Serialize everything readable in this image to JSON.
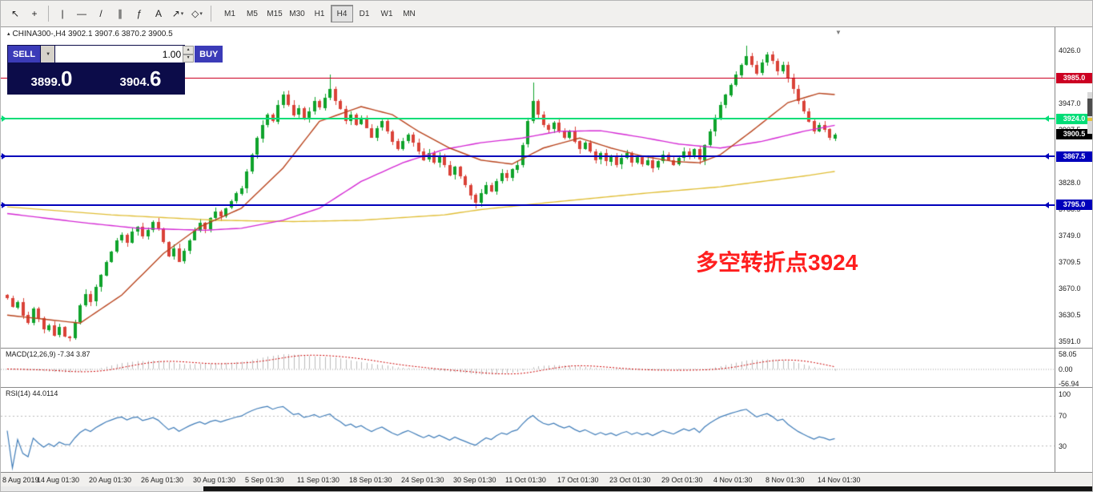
{
  "toolbar": {
    "caret_glyph": "▾",
    "tools": [
      {
        "name": "cursor",
        "glyph": "↖"
      },
      {
        "name": "crosshair",
        "glyph": "+"
      },
      {
        "sep": true
      },
      {
        "name": "vertical-line",
        "glyph": "|"
      },
      {
        "name": "horizontal-line",
        "glyph": "—"
      },
      {
        "name": "trendline",
        "glyph": "/"
      },
      {
        "name": "equidistant-channel",
        "glyph": "∥"
      },
      {
        "name": "fibonacci",
        "glyph": "ƒ"
      },
      {
        "name": "text-label",
        "glyph": "A"
      },
      {
        "name": "arrows",
        "glyph": "↗",
        "caret": true
      },
      {
        "name": "shapes",
        "glyph": "◇",
        "caret": true
      },
      {
        "sep": true
      }
    ],
    "timeframes": [
      "M1",
      "M5",
      "M15",
      "M30",
      "H1",
      "H4",
      "D1",
      "W1",
      "MN"
    ],
    "active_timeframe": "H4"
  },
  "chart": {
    "marker": "▴",
    "header_text": "CHINA300-,H4  3902.1 3907.6 3870.2 3900.5",
    "scroll_marker": "▼"
  },
  "trade_panel": {
    "sell_label": "SELL",
    "buy_label": "BUY",
    "dropdown_glyph": "▼",
    "spinner_up": "▲",
    "spinner_down": "▼",
    "volume": "1.00",
    "sell_base": "3899.",
    "sell_big": "0",
    "buy_base": "3904.",
    "buy_big": "6"
  },
  "annotation": {
    "text": "多空转折点3924",
    "color": "#ff1e1e"
  },
  "levels": [
    {
      "price": 3985.0,
      "label": "3985.0",
      "color": "#cc0022",
      "line": true,
      "thickness": 1,
      "end_markers": false
    },
    {
      "price": 3924.0,
      "label": "3924.0",
      "color": "#00dd77",
      "line": true,
      "thickness": 2,
      "end_markers": true
    },
    {
      "price": 3900.5,
      "label": "3900.5",
      "color": "#000000",
      "line": false,
      "thickness": 0,
      "end_markers": false
    },
    {
      "price": 3867.5,
      "label": "3867.5",
      "color": "#0000bb",
      "line": true,
      "thickness": 2,
      "end_markers": true
    },
    {
      "price": 3795.0,
      "label": "3795.0",
      "color": "#0000bb",
      "line": true,
      "thickness": 2,
      "end_markers": true
    }
  ],
  "price_axis": [
    4026.0,
    3947.0,
    3907.5,
    3867.5,
    3828.0,
    3788.5,
    3749.0,
    3709.5,
    3670.0,
    3630.5,
    3591.0
  ],
  "macd": {
    "label": "MACD(12,26,9) -7.34 3.87",
    "axis_labels": [
      "58.05",
      "0.00",
      "-56.94"
    ]
  },
  "rsi": {
    "label": "RSI(14) 44.0114",
    "axis_labels": [
      "100",
      "70",
      "30"
    ],
    "levels": [
      70,
      30
    ]
  },
  "time_axis": [
    "8 Aug 2019",
    "14 Aug 01:30",
    "20 Aug 01:30",
    "26 Aug 01:30",
    "30 Aug 01:30",
    "5 Sep 01:30",
    "11 Sep 01:30",
    "18 Sep 01:30",
    "24 Sep 01:30",
    "30 Sep 01:30",
    "11 Oct 01:30",
    "17 Oct 01:30",
    "23 Oct 01:30",
    "29 Oct 01:30",
    "4 Nov 01:30",
    "8 Nov 01:30",
    "14 Nov 01:30"
  ],
  "chart_data": {
    "type": "candlestick",
    "symbol": "CHINA300-",
    "timeframe": "H4",
    "title": "CHINA300-,H4",
    "ohlc_current": {
      "open": 3902.1,
      "high": 3907.6,
      "low": 3870.2,
      "close": 3900.5
    },
    "ylim": [
      3591.0,
      4026.0
    ],
    "open_first": 3660,
    "closes": [
      3655,
      3642,
      3650,
      3630,
      3618,
      3640,
      3625,
      3608,
      3615,
      3600,
      3612,
      3598,
      3596,
      3620,
      3645,
      3662,
      3650,
      3672,
      3690,
      3710,
      3725,
      3742,
      3750,
      3738,
      3755,
      3762,
      3748,
      3758,
      3770,
      3760,
      3740,
      3718,
      3730,
      3710,
      3726,
      3742,
      3756,
      3768,
      3758,
      3775,
      3785,
      3778,
      3790,
      3800,
      3812,
      3820,
      3845,
      3870,
      3895,
      3915,
      3930,
      3920,
      3945,
      3960,
      3945,
      3930,
      3940,
      3925,
      3935,
      3950,
      3940,
      3955,
      3968,
      3950,
      3938,
      3920,
      3930,
      3915,
      3925,
      3910,
      3896,
      3910,
      3920,
      3905,
      3890,
      3878,
      3890,
      3900,
      3888,
      3875,
      3862,
      3872,
      3858,
      3868,
      3855,
      3840,
      3852,
      3838,
      3825,
      3810,
      3798,
      3812,
      3825,
      3815,
      3830,
      3842,
      3835,
      3848,
      3855,
      3885,
      3920,
      3950,
      3930,
      3915,
      3908,
      3918,
      3905,
      3895,
      3905,
      3890,
      3878,
      3888,
      3875,
      3862,
      3872,
      3860,
      3868,
      3855,
      3865,
      3872,
      3858,
      3866,
      3855,
      3862,
      3850,
      3860,
      3870,
      3862,
      3855,
      3865,
      3875,
      3868,
      3878,
      3862,
      3885,
      3905,
      3925,
      3945,
      3960,
      3975,
      3990,
      4005,
      4018,
      4005,
      3992,
      4008,
      4020,
      4010,
      3995,
      4005,
      3985,
      3968,
      3950,
      3935,
      3920,
      3905,
      3915,
      3908,
      3895,
      3900.5
    ],
    "wick_overrides": {
      "high": {
        "62": 3990,
        "101": 3978,
        "142": 4033
      },
      "low": {
        "12": 3591,
        "90": 3789
      }
    },
    "ma_red": [
      [
        0,
        3630
      ],
      [
        14,
        3618
      ],
      [
        22,
        3660
      ],
      [
        30,
        3722
      ],
      [
        37,
        3762
      ],
      [
        45,
        3790
      ],
      [
        53,
        3850
      ],
      [
        60,
        3920
      ],
      [
        68,
        3942
      ],
      [
        74,
        3930
      ],
      [
        79,
        3905
      ],
      [
        85,
        3880
      ],
      [
        91,
        3862
      ],
      [
        97,
        3856
      ],
      [
        103,
        3880
      ],
      [
        110,
        3895
      ],
      [
        116,
        3880
      ],
      [
        122,
        3868
      ],
      [
        128,
        3860
      ],
      [
        133,
        3858
      ],
      [
        137,
        3870
      ],
      [
        143,
        3905
      ],
      [
        150,
        3948
      ],
      [
        156,
        3962
      ],
      [
        159,
        3960
      ]
    ],
    "ma_magenta": [
      [
        0,
        3782
      ],
      [
        15,
        3768
      ],
      [
        25,
        3760
      ],
      [
        38,
        3757
      ],
      [
        45,
        3760
      ],
      [
        53,
        3772
      ],
      [
        60,
        3790
      ],
      [
        68,
        3830
      ],
      [
        76,
        3858
      ],
      [
        84,
        3878
      ],
      [
        91,
        3888
      ],
      [
        99,
        3895
      ],
      [
        106,
        3905
      ],
      [
        114,
        3906
      ],
      [
        122,
        3896
      ],
      [
        129,
        3886
      ],
      [
        137,
        3880
      ],
      [
        145,
        3890
      ],
      [
        153,
        3905
      ],
      [
        159,
        3914
      ]
    ],
    "ma_yellow": [
      [
        0,
        3792
      ],
      [
        20,
        3780
      ],
      [
        40,
        3772
      ],
      [
        55,
        3770
      ],
      [
        68,
        3772
      ],
      [
        84,
        3780
      ],
      [
        91,
        3788
      ],
      [
        106,
        3800
      ],
      [
        122,
        3812
      ],
      [
        137,
        3822
      ],
      [
        153,
        3838
      ],
      [
        159,
        3845
      ]
    ],
    "colors": {
      "up": "#0fa32b",
      "down": "#da4238",
      "ma_red": "#b8431c",
      "ma_magenta": "#d428d4",
      "ma_yellow": "#e0be36",
      "macd_signal": "#cc0000",
      "macd_hist": "#bbbbbb",
      "rsi_line": "#3f7cb8"
    }
  }
}
